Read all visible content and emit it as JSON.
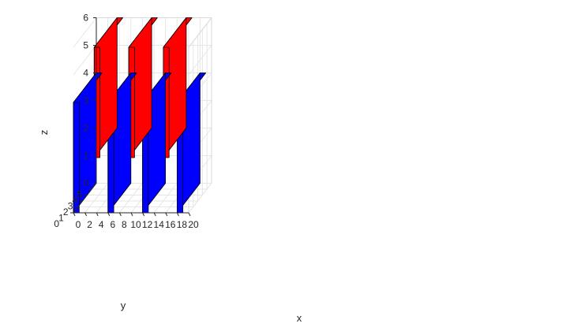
{
  "chart_data": {
    "type": "3d-bar",
    "title": "",
    "xlabel": "x",
    "ylabel": "y",
    "zlabel": "z",
    "xlim": [
      0,
      20
    ],
    "ylim": [
      0,
      5
    ],
    "zlim": [
      0,
      6
    ],
    "xticks": [
      0,
      2,
      4,
      6,
      8,
      10,
      12,
      14,
      16,
      18,
      20
    ],
    "yticks": [
      0,
      1,
      2,
      3,
      4,
      5
    ],
    "zticks": [
      0,
      1,
      2,
      3,
      4,
      5,
      6
    ],
    "grid": true,
    "boxes": [
      {
        "color": "#ff0000",
        "x": [
          3.6,
          4.6
        ],
        "y": [
          0,
          5
        ],
        "z": [
          2,
          6
        ]
      },
      {
        "color": "#ff0000",
        "x": [
          9.6,
          10.6
        ],
        "y": [
          0,
          5
        ],
        "z": [
          2,
          6
        ]
      },
      {
        "color": "#ff0000",
        "x": [
          15.6,
          16.6
        ],
        "y": [
          0,
          5
        ],
        "z": [
          2,
          6
        ]
      },
      {
        "color": "#0000ff",
        "x": [
          0,
          1
        ],
        "y": [
          0,
          5
        ],
        "z": [
          0,
          4
        ]
      },
      {
        "color": "#0000ff",
        "x": [
          6,
          7
        ],
        "y": [
          0,
          5
        ],
        "z": [
          0,
          4
        ]
      },
      {
        "color": "#0000ff",
        "x": [
          12,
          13
        ],
        "y": [
          0,
          5
        ],
        "z": [
          0,
          4
        ]
      },
      {
        "color": "#0000ff",
        "x": [
          18,
          19
        ],
        "y": [
          0,
          5
        ],
        "z": [
          0,
          4
        ]
      }
    ]
  }
}
